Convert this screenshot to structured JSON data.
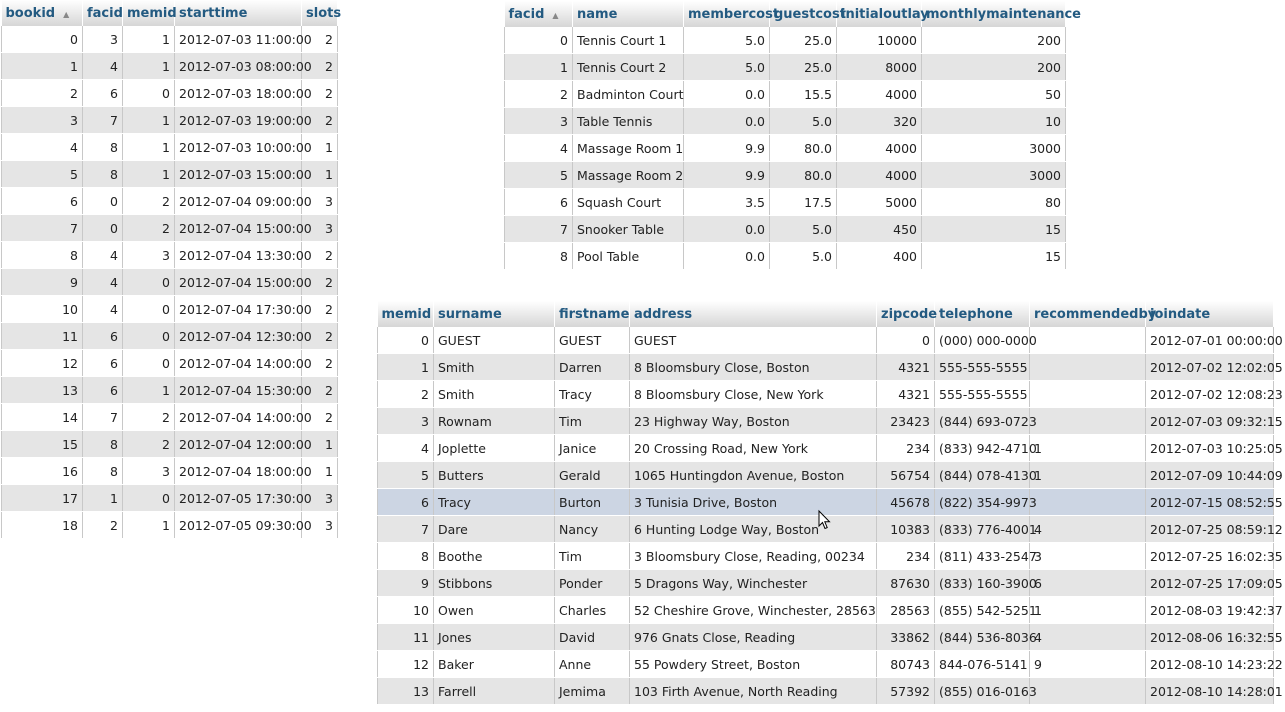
{
  "bookings": {
    "columns": [
      "bookid",
      "facid",
      "memid",
      "starttime",
      "slots"
    ],
    "sorted_column_index": 0,
    "rows": [
      [
        "0",
        "3",
        "1",
        "2012-07-03 11:00:00",
        "2"
      ],
      [
        "1",
        "4",
        "1",
        "2012-07-03 08:00:00",
        "2"
      ],
      [
        "2",
        "6",
        "0",
        "2012-07-03 18:00:00",
        "2"
      ],
      [
        "3",
        "7",
        "1",
        "2012-07-03 19:00:00",
        "2"
      ],
      [
        "4",
        "8",
        "1",
        "2012-07-03 10:00:00",
        "1"
      ],
      [
        "5",
        "8",
        "1",
        "2012-07-03 15:00:00",
        "1"
      ],
      [
        "6",
        "0",
        "2",
        "2012-07-04 09:00:00",
        "3"
      ],
      [
        "7",
        "0",
        "2",
        "2012-07-04 15:00:00",
        "3"
      ],
      [
        "8",
        "4",
        "3",
        "2012-07-04 13:30:00",
        "2"
      ],
      [
        "9",
        "4",
        "0",
        "2012-07-04 15:00:00",
        "2"
      ],
      [
        "10",
        "4",
        "0",
        "2012-07-04 17:30:00",
        "2"
      ],
      [
        "11",
        "6",
        "0",
        "2012-07-04 12:30:00",
        "2"
      ],
      [
        "12",
        "6",
        "0",
        "2012-07-04 14:00:00",
        "2"
      ],
      [
        "13",
        "6",
        "1",
        "2012-07-04 15:30:00",
        "2"
      ],
      [
        "14",
        "7",
        "2",
        "2012-07-04 14:00:00",
        "2"
      ],
      [
        "15",
        "8",
        "2",
        "2012-07-04 12:00:00",
        "1"
      ],
      [
        "16",
        "8",
        "3",
        "2012-07-04 18:00:00",
        "1"
      ],
      [
        "17",
        "1",
        "0",
        "2012-07-05 17:30:00",
        "3"
      ],
      [
        "18",
        "2",
        "1",
        "2012-07-05 09:30:00",
        "3"
      ]
    ]
  },
  "facilities": {
    "columns": [
      "facid",
      "name",
      "membercost",
      "guestcost",
      "initialoutlay",
      "monthlymaintenance"
    ],
    "sorted_column_index": 0,
    "rows": [
      [
        "0",
        "Tennis Court 1",
        "5.0",
        "25.0",
        "10000",
        "200"
      ],
      [
        "1",
        "Tennis Court 2",
        "5.0",
        "25.0",
        "8000",
        "200"
      ],
      [
        "2",
        "Badminton Court",
        "0.0",
        "15.5",
        "4000",
        "50"
      ],
      [
        "3",
        "Table Tennis",
        "0.0",
        "5.0",
        "320",
        "10"
      ],
      [
        "4",
        "Massage Room 1",
        "9.9",
        "80.0",
        "4000",
        "3000"
      ],
      [
        "5",
        "Massage Room 2",
        "9.9",
        "80.0",
        "4000",
        "3000"
      ],
      [
        "6",
        "Squash Court",
        "3.5",
        "17.5",
        "5000",
        "80"
      ],
      [
        "7",
        "Snooker Table",
        "0.0",
        "5.0",
        "450",
        "15"
      ],
      [
        "8",
        "Pool Table",
        "0.0",
        "5.0",
        "400",
        "15"
      ]
    ]
  },
  "members": {
    "columns": [
      "memid",
      "surname",
      "firstname",
      "address",
      "zipcode",
      "telephone",
      "recommendedby",
      "joindate"
    ],
    "highlighted_row_index": 6,
    "rows": [
      [
        "0",
        "GUEST",
        "GUEST",
        "GUEST",
        "0",
        "(000) 000-0000",
        "",
        "2012-07-01 00:00:00"
      ],
      [
        "1",
        "Smith",
        "Darren",
        "8 Bloomsbury Close, Boston",
        "4321",
        "555-555-5555",
        "",
        "2012-07-02 12:02:05"
      ],
      [
        "2",
        "Smith",
        "Tracy",
        "8 Bloomsbury Close, New York",
        "4321",
        "555-555-5555",
        "",
        "2012-07-02 12:08:23"
      ],
      [
        "3",
        "Rownam",
        "Tim",
        "23 Highway Way, Boston",
        "23423",
        "(844) 693-0723",
        "",
        "2012-07-03 09:32:15"
      ],
      [
        "4",
        "Joplette",
        "Janice",
        "20 Crossing Road, New York",
        "234",
        "(833) 942-4710",
        "1",
        "2012-07-03 10:25:05"
      ],
      [
        "5",
        "Butters",
        "Gerald",
        "1065 Huntingdon Avenue, Boston",
        "56754",
        "(844) 078-4130",
        "1",
        "2012-07-09 10:44:09"
      ],
      [
        "6",
        "Tracy",
        "Burton",
        "3 Tunisia Drive, Boston",
        "45678",
        "(822) 354-9973",
        "",
        "2012-07-15 08:52:55"
      ],
      [
        "7",
        "Dare",
        "Nancy",
        "6 Hunting Lodge Way, Boston",
        "10383",
        "(833) 776-4001",
        "4",
        "2012-07-25 08:59:12"
      ],
      [
        "8",
        "Boothe",
        "Tim",
        "3 Bloomsbury Close, Reading, 00234",
        "234",
        "(811) 433-2547",
        "3",
        "2012-07-25 16:02:35"
      ],
      [
        "9",
        "Stibbons",
        "Ponder",
        "5 Dragons Way, Winchester",
        "87630",
        "(833) 160-3900",
        "6",
        "2012-07-25 17:09:05"
      ],
      [
        "10",
        "Owen",
        "Charles",
        "52 Cheshire Grove, Winchester, 28563",
        "28563",
        "(855) 542-5251",
        "1",
        "2012-08-03 19:42:37"
      ],
      [
        "11",
        "Jones",
        "David",
        "976 Gnats Close, Reading",
        "33862",
        "(844) 536-8036",
        "4",
        "2012-08-06 16:32:55"
      ],
      [
        "12",
        "Baker",
        "Anne",
        "55 Powdery Street, Boston",
        "80743",
        "844-076-5141",
        "9",
        "2012-08-10 14:23:22"
      ],
      [
        "13",
        "Farrell",
        "Jemima",
        "103 Firth Avenue, North Reading",
        "57392",
        "(855) 016-0163",
        "",
        "2012-08-10 14:28:01"
      ]
    ]
  },
  "cursor": {
    "icon": "arrow-pointer-icon"
  }
}
